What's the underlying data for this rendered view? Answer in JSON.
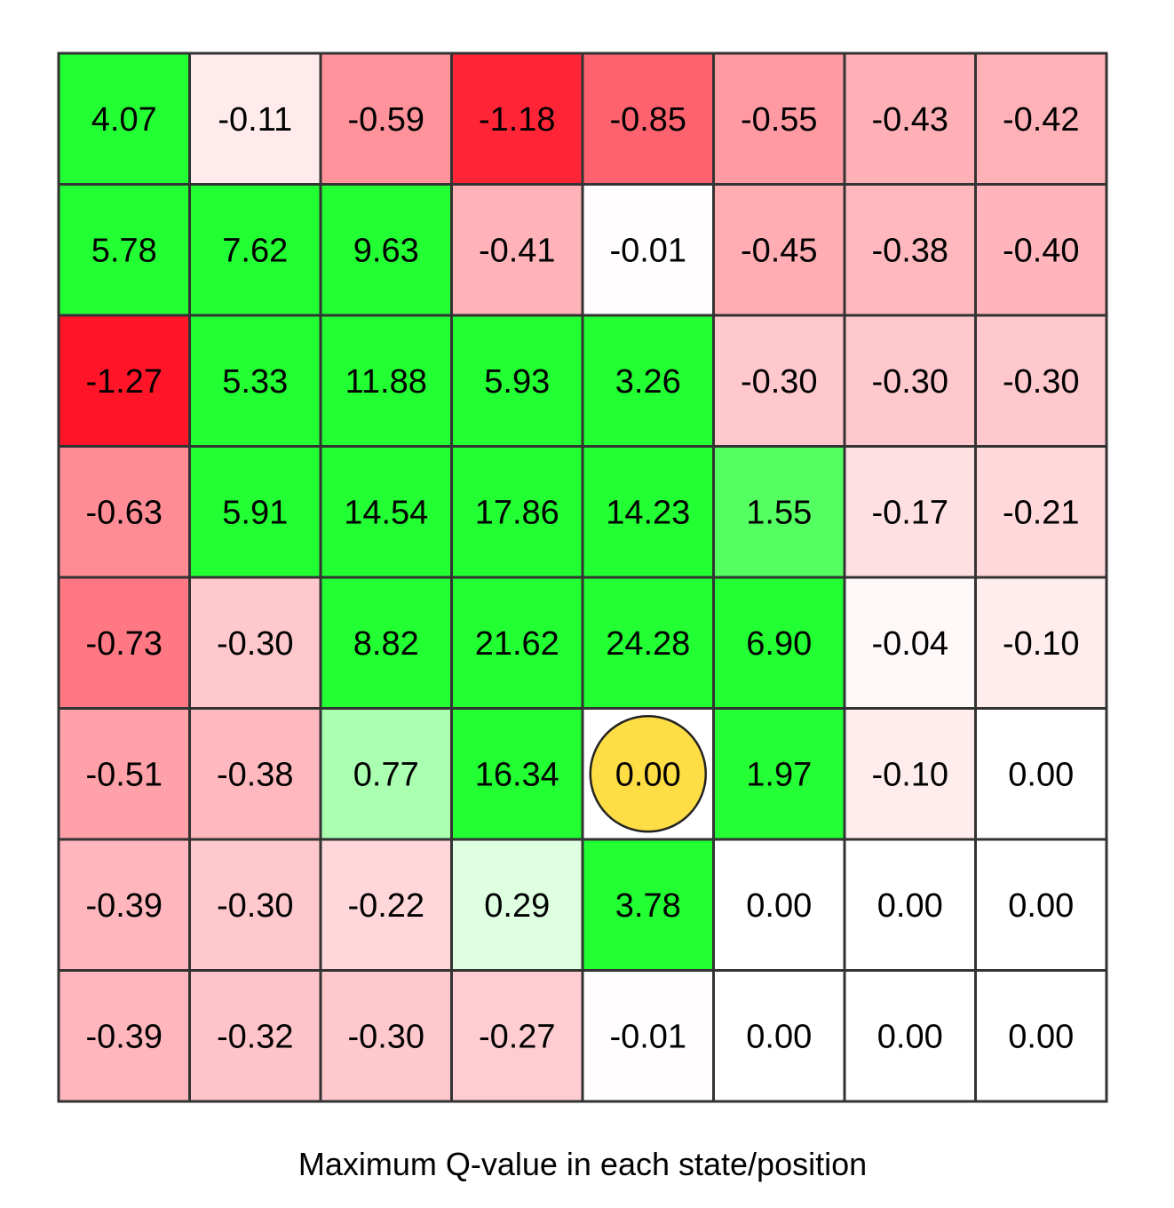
{
  "chart_data": {
    "type": "heatmap",
    "caption": "Maximum Q-value in each state/position",
    "rows": 8,
    "cols": 8,
    "values": [
      [
        4.07,
        -0.11,
        -0.59,
        -1.18,
        -0.85,
        -0.55,
        -0.43,
        -0.42
      ],
      [
        5.78,
        7.62,
        9.63,
        -0.41,
        -0.01,
        -0.45,
        -0.38,
        -0.4
      ],
      [
        -1.27,
        5.33,
        11.88,
        5.93,
        3.26,
        -0.3,
        -0.3,
        -0.3
      ],
      [
        -0.63,
        5.91,
        14.54,
        17.86,
        14.23,
        1.55,
        -0.17,
        -0.21
      ],
      [
        -0.73,
        -0.3,
        8.82,
        21.62,
        24.28,
        6.9,
        -0.04,
        -0.1
      ],
      [
        -0.51,
        -0.38,
        0.77,
        16.34,
        0.0,
        1.97,
        -0.1,
        0.0
      ],
      [
        -0.39,
        -0.3,
        -0.22,
        0.29,
        3.78,
        0.0,
        0.0,
        0.0
      ],
      [
        -0.39,
        -0.32,
        -0.3,
        -0.27,
        -0.01,
        0.0,
        0.0,
        0.0
      ]
    ],
    "labels": [
      [
        "4.07",
        "-0.11",
        "-0.59",
        "-1.18",
        "-0.85",
        "-0.55",
        "-0.43",
        "-0.42"
      ],
      [
        "5.78",
        "7.62",
        "9.63",
        "-0.41",
        "-0.01",
        "-0.45",
        "-0.38",
        "-0.40"
      ],
      [
        "-1.27",
        "5.33",
        "11.88",
        "5.93",
        "3.26",
        "-0.30",
        "-0.30",
        "-0.30"
      ],
      [
        "-0.63",
        "5.91",
        "14.54",
        "17.86",
        "14.23",
        "1.55",
        "-0.17",
        "-0.21"
      ],
      [
        "-0.73",
        "-0.30",
        "8.82",
        "21.62",
        "24.28",
        "6.90",
        "-0.04",
        "-0.10"
      ],
      [
        "-0.51",
        "-0.38",
        "0.77",
        "16.34",
        "0.00",
        "1.97",
        "-0.10",
        "0.00"
      ],
      [
        "-0.39",
        "-0.30",
        "-0.22",
        "0.29",
        "3.78",
        "0.00",
        "0.00",
        "0.00"
      ],
      [
        "-0.39",
        "-0.32",
        "-0.30",
        "-0.27",
        "-0.01",
        "0.00",
        "0.00",
        "0.00"
      ]
    ],
    "color_scale": {
      "positive": "#22ff33",
      "neutral": "#ffffff",
      "negative": "#ff0f22",
      "positive_saturation_value": 2.0,
      "negative_saturation_value": 1.3
    },
    "agent_marker": {
      "row": 5,
      "col": 4,
      "color": "#ffdd44",
      "stroke": "#222222"
    },
    "grid_line_color": "#333333"
  }
}
